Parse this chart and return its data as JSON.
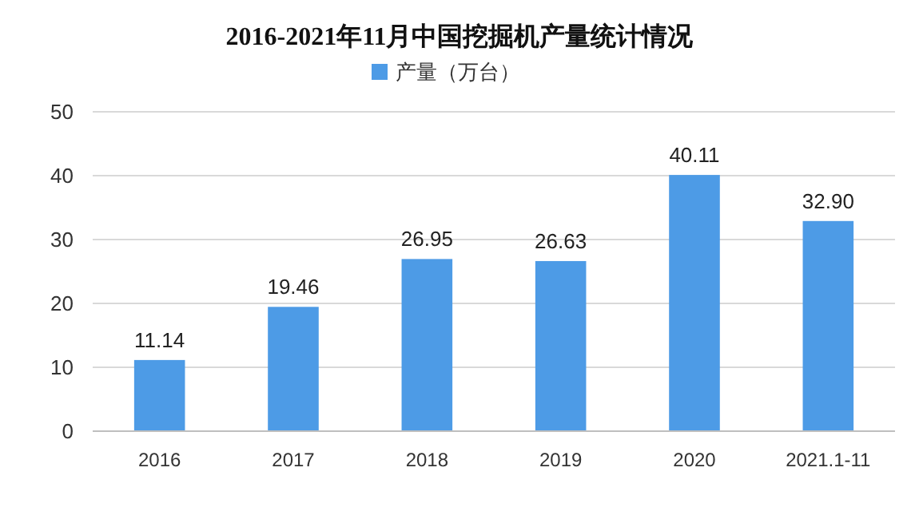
{
  "chart_data": {
    "type": "bar",
    "title": "2016-2021年11月中国挖掘机产量统计情况",
    "categories": [
      "2016",
      "2017",
      "2018",
      "2019",
      "2020",
      "2021.1-11"
    ],
    "series": [
      {
        "name": "产量（万台）",
        "color": "#4d9be6",
        "values": [
          11.14,
          19.46,
          26.95,
          26.63,
          40.11,
          32.9
        ]
      }
    ],
    "value_labels": [
      "11.14",
      "19.46",
      "26.95",
      "26.63",
      "40.11",
      "32.90"
    ],
    "ylim": [
      0,
      50
    ],
    "yticks": [
      0,
      10,
      20,
      30,
      40,
      50
    ],
    "grid": "y",
    "legend": "top"
  }
}
